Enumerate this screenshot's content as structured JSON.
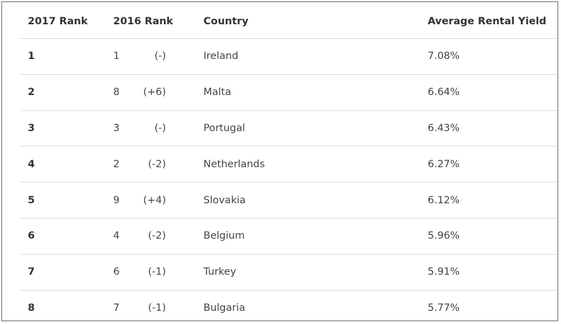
{
  "table": {
    "headers": {
      "rank_2017": "2017 Rank",
      "rank_2016": "2016 Rank",
      "country": "Country",
      "yield": "Average Rental Yield"
    },
    "rows": [
      {
        "rank_2017": "1",
        "rank_2016": "1",
        "change": "(-)",
        "country": "Ireland",
        "yield": "7.08%"
      },
      {
        "rank_2017": "2",
        "rank_2016": "8",
        "change": "(+6)",
        "country": "Malta",
        "yield": "6.64%"
      },
      {
        "rank_2017": "3",
        "rank_2016": "3",
        "change": "(-)",
        "country": "Portugal",
        "yield": "6.43%"
      },
      {
        "rank_2017": "4",
        "rank_2016": "2",
        "change": "(-2)",
        "country": "Netherlands",
        "yield": "6.27%"
      },
      {
        "rank_2017": "5",
        "rank_2016": "9",
        "change": "(+4)",
        "country": "Slovakia",
        "yield": "6.12%"
      },
      {
        "rank_2017": "6",
        "rank_2016": "4",
        "change": "(-2)",
        "country": "Belgium",
        "yield": "5.96%"
      },
      {
        "rank_2017": "7",
        "rank_2016": "6",
        "change": "(-1)",
        "country": "Turkey",
        "yield": "5.91%"
      },
      {
        "rank_2017": "8",
        "rank_2016": "7",
        "change": "(-1)",
        "country": "Bulgaria",
        "yield": "5.77%"
      }
    ]
  }
}
